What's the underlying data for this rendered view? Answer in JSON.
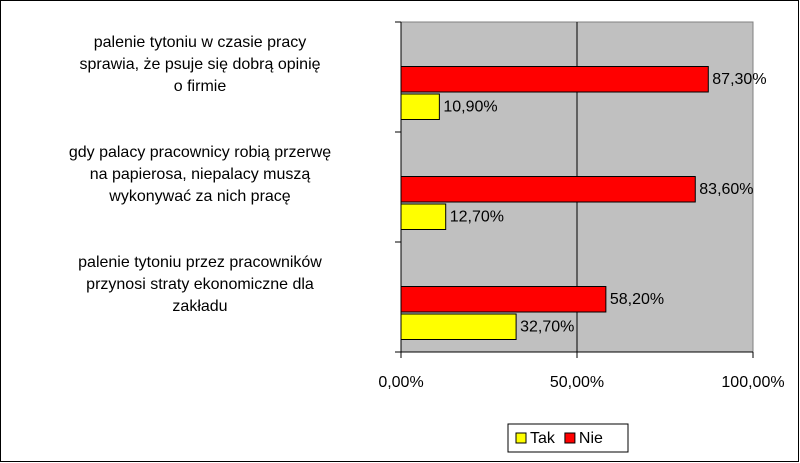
{
  "chart_data": {
    "type": "hbar",
    "categories": [
      "palenie tytoniu w czasie pracy\nsprawia, że psuje się dobrą opinię\no firmie",
      "gdy palacy pracownicy robią przerwę\nna papierosa, niepalacy muszą\nwykonywać za nich pracę",
      "palenie tytoniu przez pracowników\nprzynosi straty ekonomiczne dla\nzakładu"
    ],
    "series": [
      {
        "name": "Tak",
        "color": "#ffff00",
        "values": [
          10.9,
          12.7,
          32.7
        ],
        "value_labels": [
          "10,90%",
          "12,70%",
          "32,70%"
        ]
      },
      {
        "name": "Nie",
        "color": "#ff0000",
        "values": [
          87.3,
          83.6,
          58.2
        ],
        "value_labels": [
          "87,30%",
          "83,60%",
          "58,20%"
        ]
      }
    ],
    "xlim": [
      0,
      100
    ],
    "xticks": [
      {
        "value": 0,
        "label": "0,00%"
      },
      {
        "value": 50,
        "label": "50,00%"
      },
      {
        "value": 100,
        "label": "100,00%"
      }
    ],
    "grid": true,
    "legend": "bottom"
  }
}
